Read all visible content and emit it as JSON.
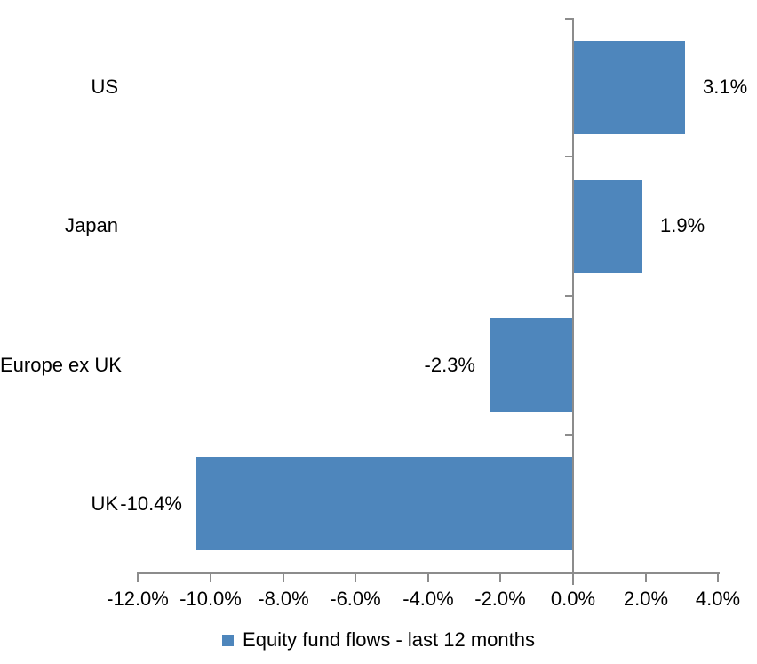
{
  "chart_data": {
    "type": "bar",
    "orientation": "horizontal",
    "categories": [
      "US",
      "Japan",
      "Europe ex UK",
      "UK"
    ],
    "series": [
      {
        "name": "Equity fund flows - last 12 months",
        "values": [
          3.1,
          1.9,
          -2.3,
          -10.4
        ],
        "data_labels": [
          "3.1%",
          "1.9%",
          "-2.3%",
          "-10.4%"
        ],
        "color": "#4E86BC"
      }
    ],
    "xlim": [
      -12,
      4
    ],
    "x_ticks": [
      {
        "label": "-12.0%",
        "value": -12
      },
      {
        "label": "-10.0%",
        "value": -10
      },
      {
        "label": "-8.0%",
        "value": -8
      },
      {
        "label": "-6.0%",
        "value": -6
      },
      {
        "label": "-4.0%",
        "value": -4
      },
      {
        "label": "-2.0%",
        "value": -2
      },
      {
        "label": "0.0%",
        "value": 0
      },
      {
        "label": "2.0%",
        "value": 2
      },
      {
        "label": "4.0%",
        "value": 4
      }
    ],
    "grid": false,
    "legend_position": "bottom",
    "axis_color": "#8C8C8C",
    "text_color": "#000000"
  }
}
